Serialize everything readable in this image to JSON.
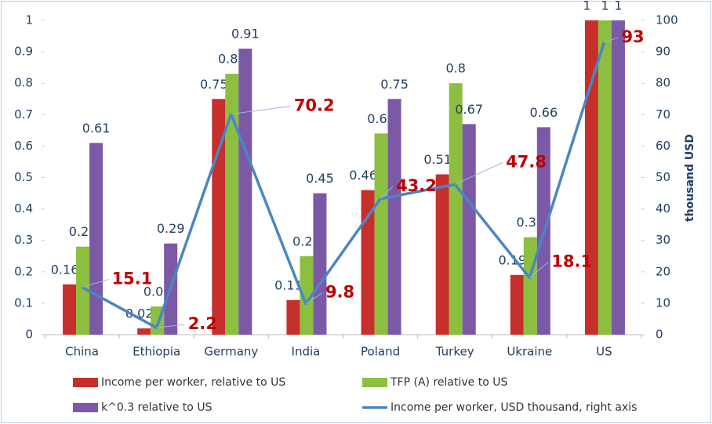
{
  "chart_data": {
    "type": "bar",
    "categories": [
      "China",
      "Ethiopia",
      "Germany",
      "India",
      "Poland",
      "Turkey",
      "Ukraine",
      "US"
    ],
    "series": [
      {
        "name": "Income per worker, relative to US",
        "color": "#c62f2c",
        "values": [
          0.16,
          0.02,
          0.75,
          0.11,
          0.46,
          0.51,
          0.19,
          1
        ]
      },
      {
        "name": "TFP (A) relative to US",
        "color": "#8cbf3f",
        "values": [
          0.28,
          0.09,
          0.83,
          0.25,
          0.64,
          0.8,
          0.31,
          1
        ]
      },
      {
        "name": "k^0.3 relative to US",
        "color": "#7b59a6",
        "values": [
          0.61,
          0.29,
          0.91,
          0.45,
          0.75,
          0.67,
          0.66,
          1
        ]
      },
      {
        "name": "Income per worker, USD thousand, right axis",
        "color": "#4a86c5",
        "type": "line",
        "axis": "y2",
        "values": [
          15.1,
          2.2,
          70.2,
          9.8,
          43.2,
          47.8,
          18.1,
          93
        ]
      }
    ],
    "ylim": [
      0,
      1
    ],
    "yticks": [
      0,
      0.1,
      0.2,
      0.3,
      0.4,
      0.5,
      0.6,
      0.7,
      0.8,
      0.9,
      1
    ],
    "y2lim": [
      0,
      100
    ],
    "y2ticks": [
      0,
      10,
      20,
      30,
      40,
      50,
      60,
      70,
      80,
      90,
      100
    ],
    "y2label": "thousand USD",
    "grid": false,
    "legend": "bottom"
  }
}
